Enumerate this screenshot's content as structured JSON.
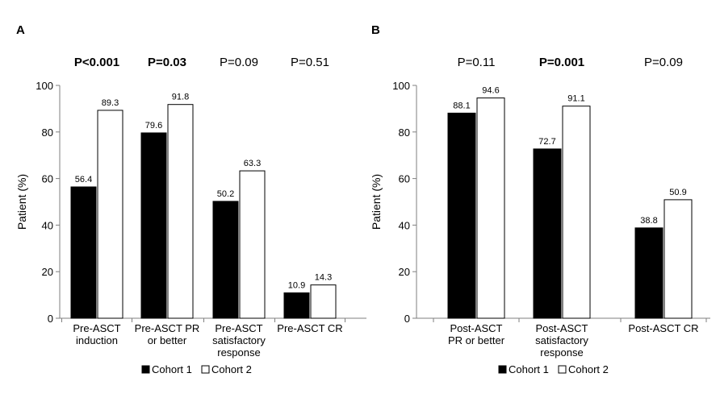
{
  "chart_data": [
    {
      "type": "bar",
      "panel_label": "A",
      "ylabel": "Patient (%)",
      "ylim": [
        0,
        100
      ],
      "yticks": [
        "0",
        "20",
        "40",
        "60",
        "80",
        "100"
      ],
      "categories": [
        [
          "Pre-ASCT",
          "induction"
        ],
        [
          "Pre-ASCT PR",
          "or better"
        ],
        [
          "Pre-ASCT",
          "satisfactory",
          "response"
        ],
        [
          "Pre-ASCT CR"
        ]
      ],
      "pvalues": [
        {
          "text": "P<0.001",
          "bold": true
        },
        {
          "text": "P=0.03",
          "bold": true
        },
        {
          "text": "P=0.09",
          "bold": false
        },
        {
          "text": "P=0.51",
          "bold": false
        }
      ],
      "series": [
        {
          "name": "Cohort 1",
          "color": "#000000",
          "values": [
            56.4,
            79.6,
            50.2,
            10.9
          ],
          "labels": [
            "56.4",
            "79.6",
            "50.2",
            "10.9"
          ]
        },
        {
          "name": "Cohort 2",
          "color": "#ffffff",
          "values": [
            89.3,
            91.8,
            63.3,
            14.3
          ],
          "labels": [
            "89.3",
            "91.8",
            "63.3",
            "14.3"
          ]
        }
      ],
      "legend": "bottom-center",
      "grid": false
    },
    {
      "type": "bar",
      "panel_label": "B",
      "ylabel": "Patient (%)",
      "ylim": [
        0,
        100
      ],
      "yticks": [
        "0",
        "20",
        "40",
        "60",
        "80",
        "100"
      ],
      "categories": [
        [
          "Post-ASCT",
          "PR or better"
        ],
        [
          "Post-ASCT",
          "satisfactory",
          "response"
        ],
        [
          "Post-ASCT CR"
        ]
      ],
      "pvalues": [
        {
          "text": "P=0.11",
          "bold": false
        },
        {
          "text": "P=0.001",
          "bold": true
        },
        {
          "text": "P=0.09",
          "bold": false
        }
      ],
      "series": [
        {
          "name": "Cohort 1",
          "color": "#000000",
          "values": [
            88.1,
            72.7,
            38.8
          ],
          "labels": [
            "88.1",
            "72.7",
            "38.8"
          ]
        },
        {
          "name": "Cohort 2",
          "color": "#ffffff",
          "values": [
            94.6,
            91.1,
            50.9
          ],
          "labels": [
            "94.6",
            "91.1",
            "50.9"
          ]
        }
      ],
      "legend": "bottom-center",
      "grid": false
    }
  ]
}
